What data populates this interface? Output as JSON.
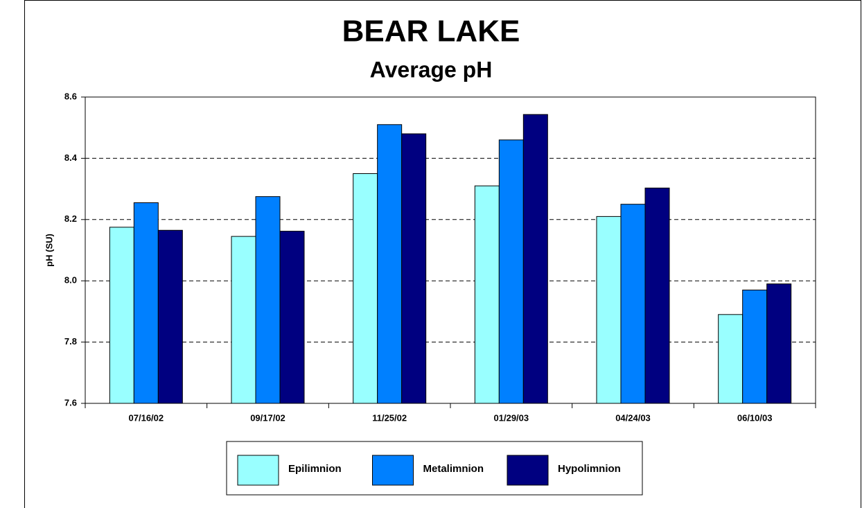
{
  "chart_data": {
    "type": "bar",
    "title": "BEAR LAKE",
    "subtitle": "Average pH",
    "y_label": "pH (SU)",
    "categories": [
      "07/16/02",
      "09/17/02",
      "11/25/02",
      "01/29/03",
      "04/24/03",
      "06/10/03"
    ],
    "series": [
      {
        "name": "Epilimnion",
        "color": "#99ffff",
        "values": [
          8.175,
          8.145,
          8.35,
          8.31,
          8.21,
          7.89
        ]
      },
      {
        "name": "Metalimnion",
        "color": "#0080ff",
        "values": [
          8.255,
          8.275,
          8.51,
          8.46,
          8.25,
          7.97
        ]
      },
      {
        "name": "Hypolimnion",
        "color": "#000080",
        "values": [
          8.165,
          8.162,
          8.48,
          8.543,
          8.303,
          7.99
        ]
      }
    ],
    "ylim": [
      7.6,
      8.6
    ],
    "yticks": [
      7.6,
      7.8,
      {
        "value": 8,
        "label": "8.0"
      },
      8.2,
      8.4,
      8.6
    ],
    "grid": true,
    "legend": "bottom"
  }
}
